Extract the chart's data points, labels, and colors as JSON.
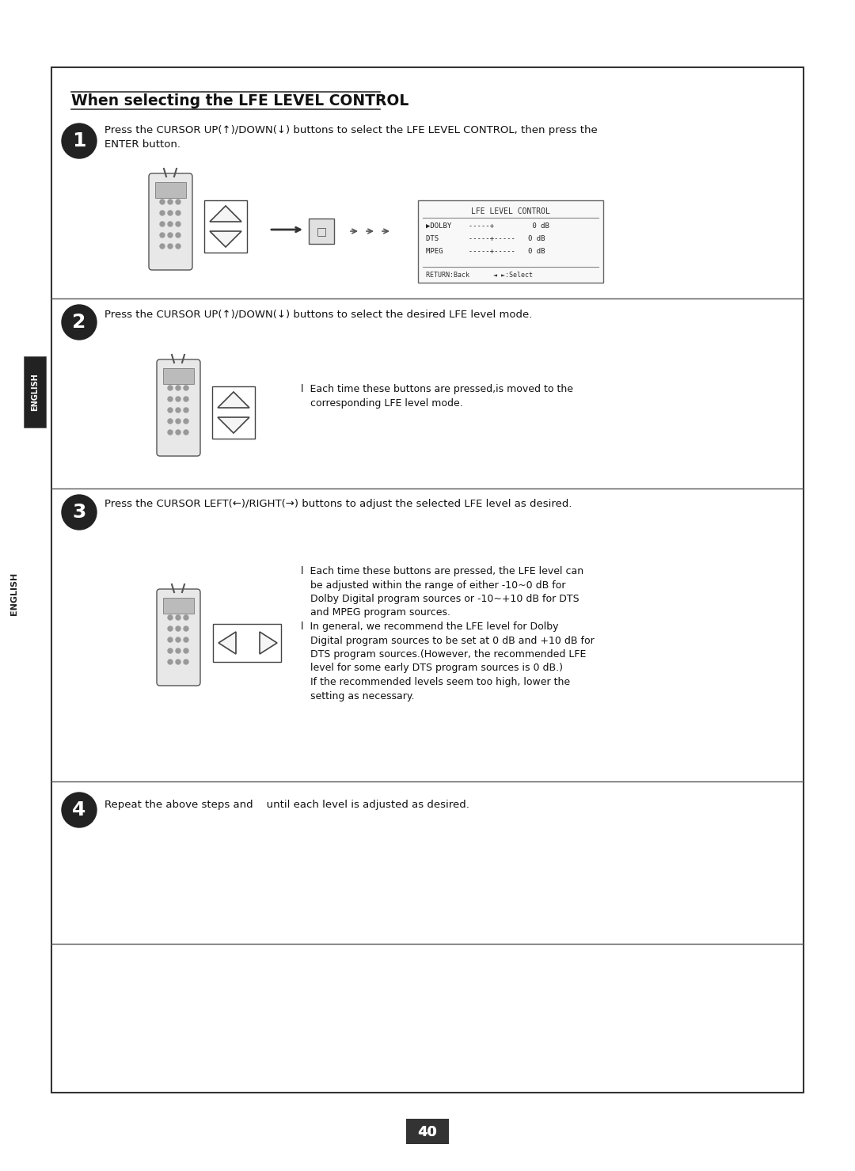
{
  "bg_color": "#ffffff",
  "page_bg": "#ffffff",
  "border_color": "#333333",
  "title": "When selecting the LFE LEVEL CONTROL",
  "section_title_underline": true,
  "english_label": "ENGLISH",
  "page_number": "40",
  "steps": [
    {
      "number": "1",
      "text": "Press the CURSOR UP(↑)/DOWN(↓) buttons to select the LFE LEVEL CONTROL, then press the\nENTER button.",
      "has_remote_updown": true,
      "has_arrow": true,
      "has_enter_btn": true,
      "has_lfe_screen": true,
      "bullet_text": ""
    },
    {
      "number": "2",
      "text": "Press the CURSOR UP(↑)/DOWN(↓) buttons to select the desired LFE level mode.",
      "has_remote_updown": true,
      "bullet_text": "l  Each time these buttons are pressed,is moved to the\n   corresponding LFE level mode."
    },
    {
      "number": "3",
      "text": "Press the CURSOR LEFT(←)/RIGHT(→) buttons to adjust the selected LFE level as desired.",
      "has_remote_leftright": true,
      "bullet_text": "l  Each time these buttons are pressed, the LFE level can\n   be adjusted within the range of either -10~0 dB for\n   Dolby Digital program sources or -10~+10 dB for DTS\n   and MPEG program sources.\nl  In general, we recommend the LFE level for Dolby\n   Digital program sources to be set at 0 dB and +10 dB for\n   DTS program sources.(However, the recommended LFE\n   level for some early DTS program sources is 0 dB.)\n   If the recommended levels seem too high, lower the\n   setting as necessary."
    },
    {
      "number": "4",
      "text": "Repeat the above steps and    until each level is adjusted as desired.",
      "bullet_text": ""
    }
  ],
  "lfe_screen": {
    "title": "LFE LEVEL CONTROL",
    "rows": [
      "►D O L B Y    - - - - - +         0 dB",
      "D T S       - - - - - + - - - - -   0 dB",
      "M P E G    - - - - - + - - - - -   0 dB"
    ],
    "footer": "R E T U R N : B a c k         ◄ ► : S e l e c t"
  }
}
